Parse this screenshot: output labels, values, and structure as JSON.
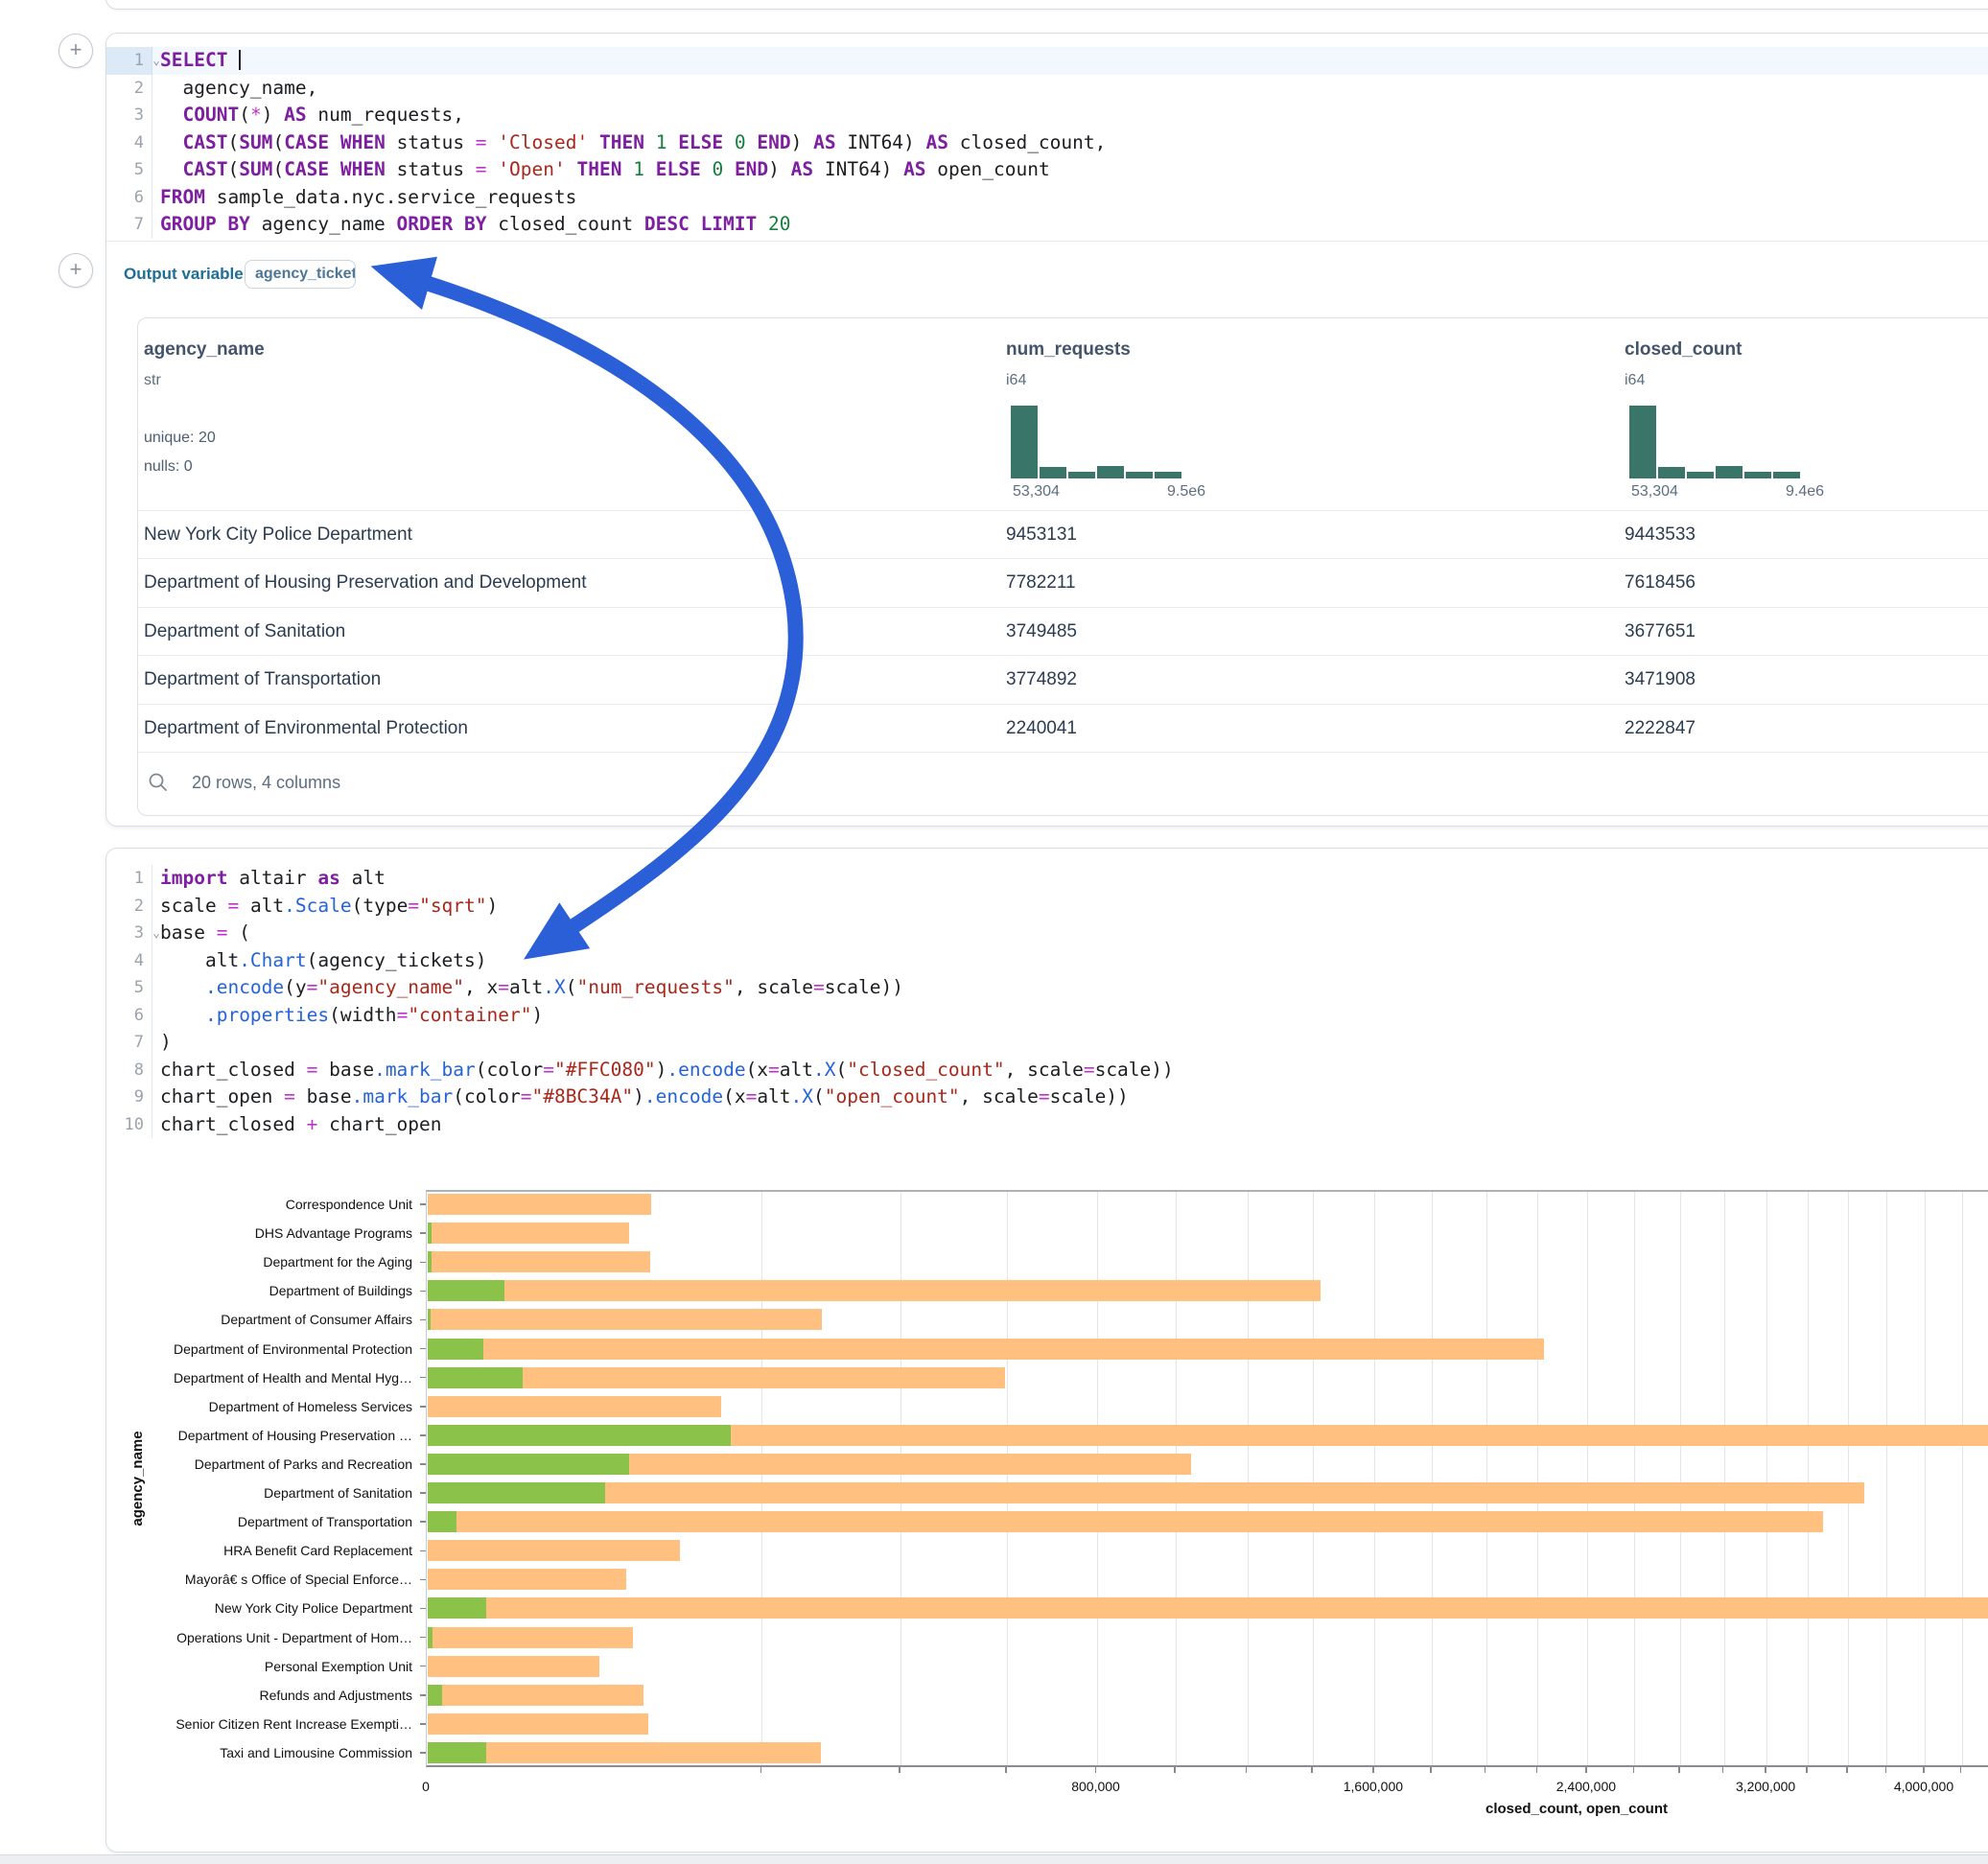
{
  "colors": {
    "arrow": "#2A5FD8",
    "hist_bar": "#3a7569",
    "closed_bar": "#FFC080",
    "open_bar": "#8BC34A"
  },
  "sql_cell": {
    "lines": [
      {
        "n": "1",
        "fold": true,
        "cursor": true,
        "t": [
          [
            "kw",
            "SELECT"
          ],
          [
            "pl",
            " "
          ]
        ]
      },
      {
        "n": "2",
        "t": [
          [
            "pl",
            "  agency_name,"
          ]
        ]
      },
      {
        "n": "3",
        "t": [
          [
            "pl",
            "  "
          ],
          [
            "kw",
            "COUNT"
          ],
          [
            "pl",
            "("
          ],
          [
            "op",
            "*"
          ],
          [
            "pl",
            ") "
          ],
          [
            "kw",
            "AS"
          ],
          [
            "pl",
            " num_requests,"
          ]
        ]
      },
      {
        "n": "4",
        "t": [
          [
            "pl",
            "  "
          ],
          [
            "kw",
            "CAST"
          ],
          [
            "pl",
            "("
          ],
          [
            "kw",
            "SUM"
          ],
          [
            "pl",
            "("
          ],
          [
            "kw",
            "CASE"
          ],
          [
            "pl",
            " "
          ],
          [
            "kw",
            "WHEN"
          ],
          [
            "pl",
            " status "
          ],
          [
            "op",
            "="
          ],
          [
            "pl",
            " "
          ],
          [
            "str",
            "'Closed'"
          ],
          [
            "pl",
            " "
          ],
          [
            "kw",
            "THEN"
          ],
          [
            "pl",
            " "
          ],
          [
            "num",
            "1"
          ],
          [
            "pl",
            " "
          ],
          [
            "kw",
            "ELSE"
          ],
          [
            "pl",
            " "
          ],
          [
            "num",
            "0"
          ],
          [
            "pl",
            " "
          ],
          [
            "kw",
            "END"
          ],
          [
            "pl",
            ") "
          ],
          [
            "kw",
            "AS"
          ],
          [
            "pl",
            " INT64) "
          ],
          [
            "kw",
            "AS"
          ],
          [
            "pl",
            " closed_count,"
          ]
        ]
      },
      {
        "n": "5",
        "t": [
          [
            "pl",
            "  "
          ],
          [
            "kw",
            "CAST"
          ],
          [
            "pl",
            "("
          ],
          [
            "kw",
            "SUM"
          ],
          [
            "pl",
            "("
          ],
          [
            "kw",
            "CASE"
          ],
          [
            "pl",
            " "
          ],
          [
            "kw",
            "WHEN"
          ],
          [
            "pl",
            " status "
          ],
          [
            "op",
            "="
          ],
          [
            "pl",
            " "
          ],
          [
            "str",
            "'Open'"
          ],
          [
            "pl",
            " "
          ],
          [
            "kw",
            "THEN"
          ],
          [
            "pl",
            " "
          ],
          [
            "num",
            "1"
          ],
          [
            "pl",
            " "
          ],
          [
            "kw",
            "ELSE"
          ],
          [
            "pl",
            " "
          ],
          [
            "num",
            "0"
          ],
          [
            "pl",
            " "
          ],
          [
            "kw",
            "END"
          ],
          [
            "pl",
            ") "
          ],
          [
            "kw",
            "AS"
          ],
          [
            "pl",
            " INT64) "
          ],
          [
            "kw",
            "AS"
          ],
          [
            "pl",
            " open_count"
          ]
        ]
      },
      {
        "n": "6",
        "t": [
          [
            "kw",
            "FROM"
          ],
          [
            "pl",
            " sample_data.nyc.service_requests"
          ]
        ]
      },
      {
        "n": "7",
        "t": [
          [
            "kw",
            "GROUP BY"
          ],
          [
            "pl",
            " agency_name "
          ],
          [
            "kw",
            "ORDER BY"
          ],
          [
            "pl",
            " closed_count "
          ],
          [
            "kw",
            "DESC"
          ],
          [
            "pl",
            " "
          ],
          [
            "kw",
            "LIMIT"
          ],
          [
            "pl",
            " "
          ],
          [
            "num",
            "20"
          ]
        ]
      }
    ],
    "output_label": "Output variable:",
    "output_variable": "agency_tickets"
  },
  "table": {
    "columns": [
      {
        "name": "agency_name",
        "type": "str",
        "stats": [
          "unique: 20",
          "nulls: 0"
        ]
      },
      {
        "name": "num_requests",
        "type": "i64",
        "hist": {
          "min_label": "53,304",
          "max_label": "9.5e6",
          "bars": [
            1,
            0.16,
            0.09,
            0.17,
            0.09,
            0.09
          ]
        }
      },
      {
        "name": "closed_count",
        "type": "i64",
        "hist": {
          "min_label": "53,304",
          "max_label": "9.4e6",
          "bars": [
            1,
            0.16,
            0.09,
            0.17,
            0.09,
            0.09
          ]
        }
      }
    ],
    "rows": [
      [
        "New York City Police Department",
        "9453131",
        "9443533"
      ],
      [
        "Department of Housing Preservation and Development",
        "7782211",
        "7618456"
      ],
      [
        "Department of Sanitation",
        "3749485",
        "3677651"
      ],
      [
        "Department of Transportation",
        "3774892",
        "3471908"
      ],
      [
        "Department of Environmental Protection",
        "2240041",
        "2222847"
      ]
    ],
    "footer": "20 rows, 4 columns"
  },
  "python_cell": {
    "lines": [
      {
        "n": "1",
        "t": [
          [
            "kw",
            "import"
          ],
          [
            "pl",
            " altair "
          ],
          [
            "kw",
            "as"
          ],
          [
            "pl",
            " alt"
          ]
        ]
      },
      {
        "n": "2",
        "t": [
          [
            "pl",
            "scale "
          ],
          [
            "op",
            "="
          ],
          [
            "pl",
            " alt"
          ],
          [
            "fn",
            ".Scale"
          ],
          [
            "pl",
            "(type"
          ],
          [
            "op",
            "="
          ],
          [
            "str",
            "\"sqrt\""
          ],
          [
            "pl",
            ")"
          ]
        ]
      },
      {
        "n": "3",
        "fold": true,
        "t": [
          [
            "pl",
            "base "
          ],
          [
            "op",
            "="
          ],
          [
            "pl",
            " ("
          ]
        ]
      },
      {
        "n": "4",
        "t": [
          [
            "pl",
            "    alt"
          ],
          [
            "fn",
            ".Chart"
          ],
          [
            "pl",
            "(agency_tickets)"
          ]
        ]
      },
      {
        "n": "5",
        "t": [
          [
            "pl",
            "    "
          ],
          [
            "fn",
            ".encode"
          ],
          [
            "pl",
            "(y"
          ],
          [
            "op",
            "="
          ],
          [
            "str",
            "\"agency_name\""
          ],
          [
            "pl",
            ", x"
          ],
          [
            "op",
            "="
          ],
          [
            "pl",
            "alt"
          ],
          [
            "fn",
            ".X"
          ],
          [
            "pl",
            "("
          ],
          [
            "str",
            "\"num_requests\""
          ],
          [
            "pl",
            ", scale"
          ],
          [
            "op",
            "="
          ],
          [
            "pl",
            "scale))"
          ]
        ]
      },
      {
        "n": "6",
        "t": [
          [
            "pl",
            "    "
          ],
          [
            "fn",
            ".properties"
          ],
          [
            "pl",
            "(width"
          ],
          [
            "op",
            "="
          ],
          [
            "str",
            "\"container\""
          ],
          [
            "pl",
            ")"
          ]
        ]
      },
      {
        "n": "7",
        "t": [
          [
            "pl",
            ")"
          ]
        ]
      },
      {
        "n": "8",
        "t": [
          [
            "pl",
            "chart_closed "
          ],
          [
            "op",
            "="
          ],
          [
            "pl",
            " base"
          ],
          [
            "fn",
            ".mark_bar"
          ],
          [
            "pl",
            "(color"
          ],
          [
            "op",
            "="
          ],
          [
            "str",
            "\"#FFC080\""
          ],
          [
            "pl",
            ")"
          ],
          [
            "fn",
            ".encode"
          ],
          [
            "pl",
            "(x"
          ],
          [
            "op",
            "="
          ],
          [
            "pl",
            "alt"
          ],
          [
            "fn",
            ".X"
          ],
          [
            "pl",
            "("
          ],
          [
            "str",
            "\"closed_count\""
          ],
          [
            "pl",
            ", scale"
          ],
          [
            "op",
            "="
          ],
          [
            "pl",
            "scale))"
          ]
        ]
      },
      {
        "n": "9",
        "t": [
          [
            "pl",
            "chart_open "
          ],
          [
            "op",
            "="
          ],
          [
            "pl",
            " base"
          ],
          [
            "fn",
            ".mark_bar"
          ],
          [
            "pl",
            "(color"
          ],
          [
            "op",
            "="
          ],
          [
            "str",
            "\"#8BC34A\""
          ],
          [
            "pl",
            ")"
          ],
          [
            "fn",
            ".encode"
          ],
          [
            "pl",
            "(x"
          ],
          [
            "op",
            "="
          ],
          [
            "pl",
            "alt"
          ],
          [
            "fn",
            ".X"
          ],
          [
            "pl",
            "("
          ],
          [
            "str",
            "\"open_count\""
          ],
          [
            "pl",
            ", scale"
          ],
          [
            "op",
            "="
          ],
          [
            "pl",
            "scale))"
          ]
        ]
      },
      {
        "n": "10",
        "t": [
          [
            "pl",
            "chart_closed "
          ],
          [
            "op",
            "+"
          ],
          [
            "pl",
            " chart_open"
          ]
        ]
      }
    ]
  },
  "chart_data": {
    "type": "bar",
    "orientation": "horizontal",
    "x_scale": "sqrt",
    "xlabel": "closed_count, open_count",
    "ylabel": "agency_name",
    "categories": [
      "Correspondence Unit",
      "DHS Advantage Programs",
      "Department for the Aging",
      "Department of Buildings",
      "Department of Consumer Affairs",
      "Department of Environmental Protection",
      "Department of Health and Mental Hyg…",
      "Department of Homeless Services",
      "Department of Housing Preservation …",
      "Department of Parks and Recreation",
      "Department of Sanitation",
      "Department of Transportation",
      "HRA Benefit Card Replacement",
      "Mayorâ€ s Office of Special Enforce…",
      "New York City Police Department",
      "Operations Unit - Department of Hom…",
      "Personal Exemption Unit",
      "Refunds and Adjustments",
      "Senior Citizen Rent Increase Exempti…",
      "Taxi and Limousine Commission"
    ],
    "series": [
      {
        "name": "closed_count",
        "color": "#FFC080",
        "values": [
          89000,
          72000,
          88000,
          1420000,
          277000,
          2222847,
          594000,
          154000,
          7618456,
          1040000,
          3677651,
          3471908,
          113000,
          70000,
          9443533,
          75000,
          52500,
          83000,
          87000,
          276000
        ]
      },
      {
        "name": "open_count",
        "color": "#8BC34A",
        "values": [
          0,
          30,
          30,
          10500,
          20,
          5500,
          16000,
          0,
          164000,
          72000,
          56000,
          1500,
          0,
          0,
          6100,
          40,
          0,
          350,
          0,
          6100
        ]
      }
    ],
    "x_tick_step": 200000,
    "x_ticks_labeled": [
      {
        "v": 0,
        "label": "0"
      },
      {
        "v": 800000,
        "label": "800,000"
      },
      {
        "v": 1600000,
        "label": "1,600,000"
      },
      {
        "v": 2400000,
        "label": "2,400,000"
      },
      {
        "v": 3200000,
        "label": "3,200,000"
      },
      {
        "v": 4000000,
        "label": "4,000,000"
      }
    ],
    "grid": true,
    "legend": "none"
  }
}
